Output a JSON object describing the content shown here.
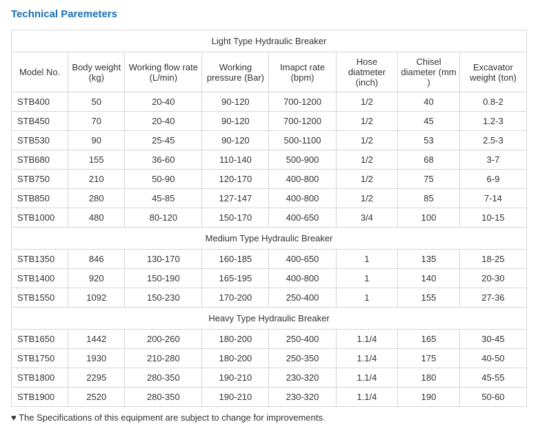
{
  "title": "Technical Paremeters",
  "columns": [
    {
      "label": "Model No."
    },
    {
      "label": "Body weight (kg)"
    },
    {
      "label": "Working flow rate (L/min)"
    },
    {
      "label": "Working pressure (Bar)"
    },
    {
      "label": "Imapct rate (bpm)"
    },
    {
      "label": "Hose diatmeter (inch)"
    },
    {
      "label": "Chisel diameter (mm )"
    },
    {
      "label": "Excavator weight (ton)"
    }
  ],
  "sections": [
    {
      "title": "Light Type Hydraulic Breaker",
      "rows": [
        [
          "STB400",
          "50",
          "20-40",
          "90-120",
          "700-1200",
          "1/2",
          "40",
          "0.8-2"
        ],
        [
          "STB450",
          "70",
          "20-40",
          "90-120",
          "700-1200",
          "1/2",
          "45",
          "1.2-3"
        ],
        [
          "STB530",
          "90",
          "25-45",
          "90-120",
          "500-1100",
          "1/2",
          "53",
          "2.5-3"
        ],
        [
          "STB680",
          "155",
          "36-60",
          "110-140",
          "500-900",
          "1/2",
          "68",
          "3-7"
        ],
        [
          "STB750",
          "210",
          "50-90",
          "120-170",
          "400-800",
          "1/2",
          "75",
          "6-9"
        ],
        [
          "STB850",
          "280",
          "45-85",
          "127-147",
          "400-800",
          "1/2",
          "85",
          "7-14"
        ],
        [
          "STB1000",
          "480",
          "80-120",
          "150-170",
          "400-650",
          "3/4",
          "100",
          "10-15"
        ]
      ]
    },
    {
      "title": "Medium Type Hydraulic Breaker",
      "rows": [
        [
          "STB1350",
          "846",
          "130-170",
          "160-185",
          "400-650",
          "1",
          "135",
          "18-25"
        ],
        [
          "STB1400",
          "920",
          "150-190",
          "165-195",
          "400-800",
          "1",
          "140",
          "20-30"
        ],
        [
          "STB1550",
          "1092",
          "150-230",
          "170-200",
          "250-400",
          "1",
          "155",
          "27-36"
        ]
      ]
    },
    {
      "title": "Heavy Type Hydraulic Breaker",
      "rows": [
        [
          "STB1650",
          "1442",
          "200-260",
          "180-200",
          "250-400",
          "1.1/4",
          "165",
          "30-45"
        ],
        [
          "STB1750",
          "1930",
          "210-280",
          "180-200",
          "250-350",
          "1.1/4",
          "175",
          "40-50"
        ],
        [
          "STB1800",
          "2295",
          "280-350",
          "190-210",
          "230-320",
          "1.1/4",
          "180",
          "45-55"
        ],
        [
          "STB1900",
          "2520",
          "280-350",
          "190-210",
          "230-320",
          "1.1/4",
          "190",
          "50-60"
        ]
      ]
    }
  ],
  "footnote": "♥ The Specifications of this equipment are subject to change for improvements.",
  "colors": {
    "title_color": "#1a6fb8",
    "border_color": "#d6d6d6",
    "text_color": "#333333",
    "background": "#ffffff"
  }
}
